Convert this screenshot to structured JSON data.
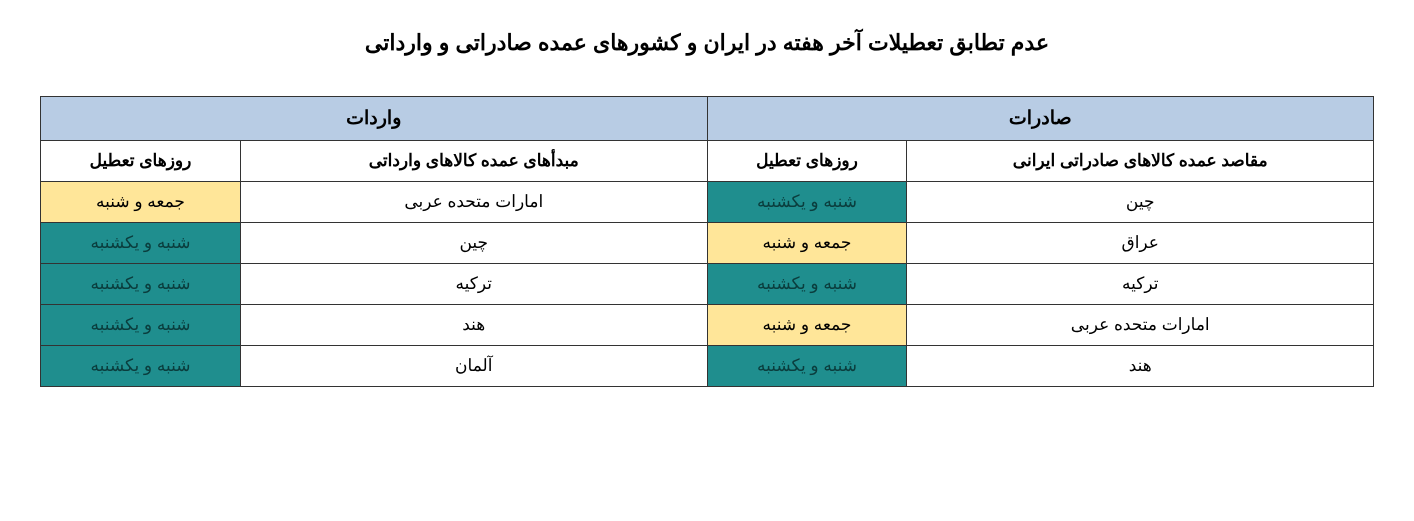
{
  "title": "عدم تطابق تعطیلات آخر هفته در ایران و کشورهای عمده صادراتی و وارداتی",
  "colors": {
    "header_bg": "#b8cce4",
    "teal_bg": "#1f8e8e",
    "yellow_bg": "#ffe699",
    "white_bg": "#ffffff",
    "border": "#333333"
  },
  "headers": {
    "exports_group": "صادرات",
    "imports_group": "واردات",
    "export_dest": "مقاصد عمده کالاهای صادراتی ایرانی",
    "export_days": "روزهای تعطیل",
    "import_origin": "مبدأهای عمده کالاهای وارداتی",
    "import_days": "روزهای تعطیل"
  },
  "rows": [
    {
      "export_dest": "چین",
      "export_days": "شنبه و یکشنبه",
      "export_days_class": "cell-teal",
      "import_origin": "امارات متحده عربی",
      "import_days": "جمعه و شنبه",
      "import_days_class": "cell-yellow"
    },
    {
      "export_dest": "عراق",
      "export_days": "جمعه و شنبه",
      "export_days_class": "cell-yellow",
      "import_origin": "چین",
      "import_days": "شنبه و یکشنبه",
      "import_days_class": "cell-teal"
    },
    {
      "export_dest": "ترکیه",
      "export_days": "شنبه و یکشنبه",
      "export_days_class": "cell-teal",
      "import_origin": "ترکیه",
      "import_days": "شنبه و یکشنبه",
      "import_days_class": "cell-teal"
    },
    {
      "export_dest": "امارات متحده عربی",
      "export_days": "جمعه و شنبه",
      "export_days_class": "cell-yellow",
      "import_origin": "هند",
      "import_days": "شنبه و یکشنبه",
      "import_days_class": "cell-teal"
    },
    {
      "export_dest": "هند",
      "export_days": "شنبه و یکشنبه",
      "export_days_class": "cell-teal",
      "import_origin": "آلمان",
      "import_days": "شنبه و یکشنبه",
      "import_days_class": "cell-teal"
    }
  ]
}
